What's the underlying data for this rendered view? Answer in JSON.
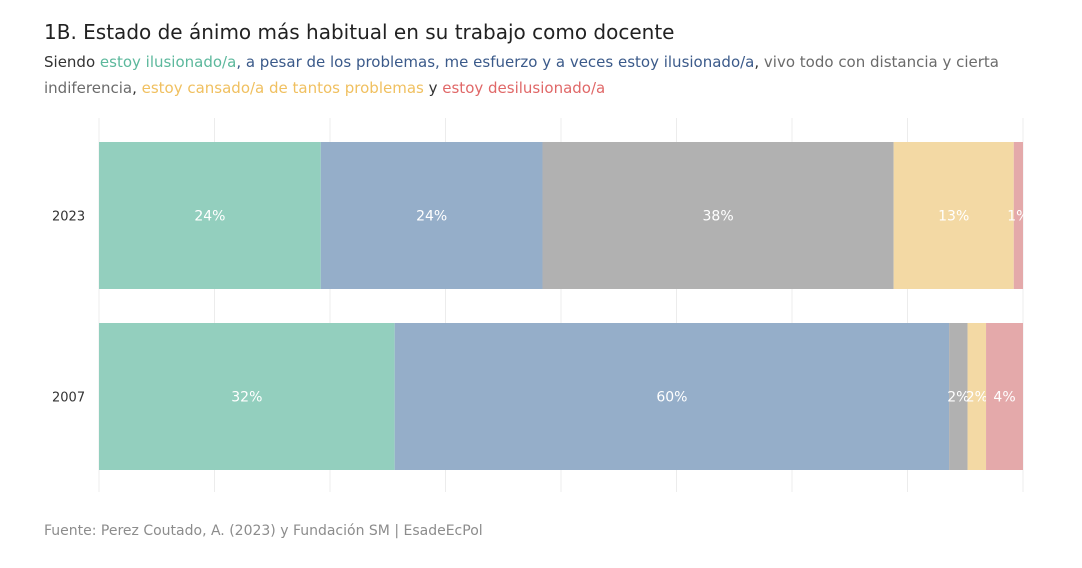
{
  "title": "1B. Estado de ánimo más habitual en su trabajo como docente",
  "subtitle": {
    "segments": [
      {
        "text": "Siendo ",
        "color": "#333333"
      },
      {
        "text": "estoy ilusionado/a",
        "color": "#5cb89c"
      },
      {
        "text": ", a pesar de los problemas, me esfuerzo y a veces estoy ilusionado/a",
        "color": "#3b5a8a"
      },
      {
        "text": ", ",
        "color": "#333333"
      },
      {
        "text": "vivo todo con distancia y cierta indiferencia",
        "color": "#6b6b6b"
      },
      {
        "text": ", ",
        "color": "#333333"
      },
      {
        "text": "estoy cansado/a de tantos problemas",
        "color": "#f0c060"
      },
      {
        "text": " y ",
        "color": "#333333"
      },
      {
        "text": "estoy desilusionado/a",
        "color": "#e06868"
      }
    ]
  },
  "source": "Fuente: Perez Coutado, A. (2023) y Fundación SM | EsadeEcPol",
  "chart_data": {
    "type": "bar",
    "orientation": "horizontal",
    "stacked": true,
    "categories": [
      "2023",
      "2007"
    ],
    "series": [
      {
        "name": "estoy ilusionado/a",
        "color": "#93cfbe",
        "values": [
          24,
          32
        ],
        "labels": [
          "24%",
          "32%"
        ]
      },
      {
        "name": "a pesar de los problemas, me esfuerzo y a veces estoy ilusionado/a",
        "color": "#95aec9",
        "values": [
          24,
          60
        ],
        "labels": [
          "24%",
          "60%"
        ]
      },
      {
        "name": "vivo todo con distancia y cierta indiferencia",
        "color": "#b1b1b1",
        "values": [
          38,
          2
        ],
        "labels": [
          "38%",
          "2%"
        ]
      },
      {
        "name": "estoy cansado/a de tantos problemas",
        "color": "#f3d9a4",
        "values": [
          13,
          2
        ],
        "labels": [
          "13%",
          "2%"
        ]
      },
      {
        "name": "estoy desilusionado/a",
        "color": "#e4a9aa",
        "values": [
          1,
          4
        ],
        "labels": [
          "1%",
          "4%"
        ]
      }
    ],
    "xlim": [
      0,
      100
    ],
    "grid": true
  }
}
